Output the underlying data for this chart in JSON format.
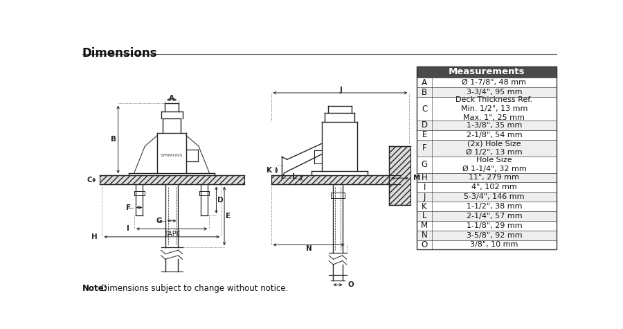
{
  "title": "Dimensions",
  "note_bold": "Note:",
  "note_rest": " Dimensions subject to change without notice.",
  "table_header": "Measurements",
  "table_rows": [
    [
      "A",
      "Ø 1-7/8\", 48 mm"
    ],
    [
      "B",
      "3-3/4\", 95 mm"
    ],
    [
      "C",
      "Deck Thickness Ref.\nMin. 1/2\", 13 mm\nMax. 1\", 25 mm"
    ],
    [
      "D",
      "1-3/8\", 35 mm"
    ],
    [
      "E",
      "2-1/8\", 54 mm"
    ],
    [
      "F",
      "(2x) Hole Size\nØ 1/2\", 13 mm"
    ],
    [
      "G",
      "Hole Size\nØ 1-1/4\", 32 mm"
    ],
    [
      "H",
      "11\", 279 mm"
    ],
    [
      "I",
      "4\", 102 mm"
    ],
    [
      "J",
      "5-3/4\", 146 mm"
    ],
    [
      "K",
      "1-1/2\", 38 mm"
    ],
    [
      "L",
      "2-1/4\", 57 mm"
    ],
    [
      "M",
      "1-1/8\", 29 mm"
    ],
    [
      "N",
      "3-5/8\", 92 mm"
    ],
    [
      "O",
      "3/8\", 10 mm"
    ]
  ],
  "bg_color": "#ffffff",
  "table_header_bg": "#4a4a4a",
  "table_header_fg": "#ffffff",
  "table_border": "#333333",
  "lc": "#222222",
  "hatch_color": "#888888",
  "hatch_face": "#dddddd"
}
